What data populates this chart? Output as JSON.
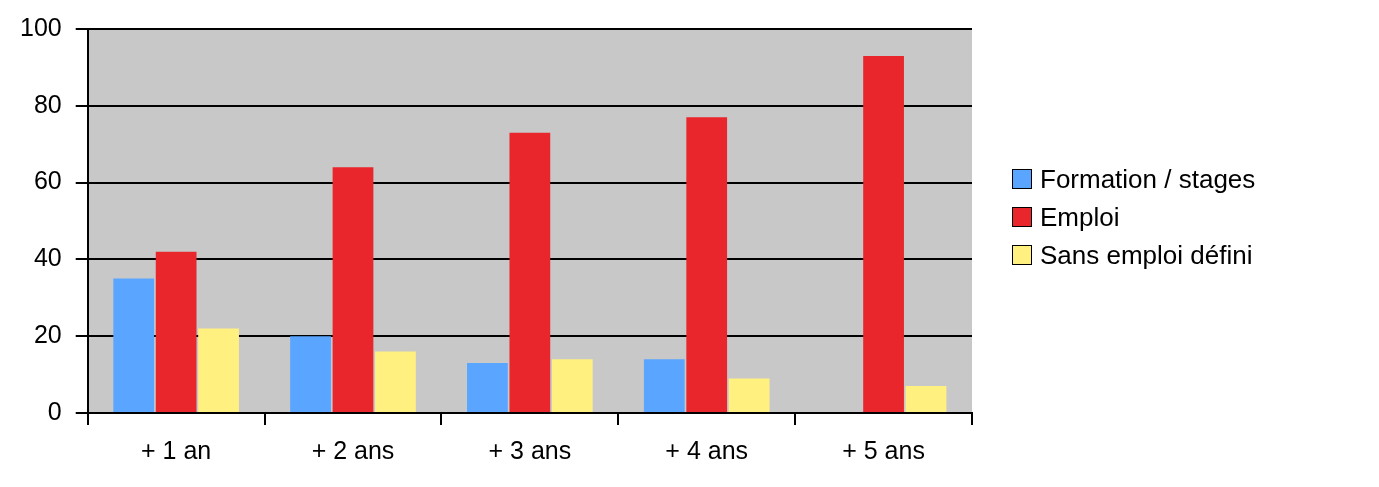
{
  "chart_data": {
    "type": "bar",
    "categories": [
      "+ 1 an",
      "+ 2 ans",
      "+ 3 ans",
      "+ 4 ans",
      "+ 5 ans"
    ],
    "series": [
      {
        "name": "Formation / stages",
        "color": "#5aa5ff",
        "values": [
          35,
          20,
          13,
          14,
          null
        ]
      },
      {
        "name": "Emploi",
        "color": "#e8262b",
        "values": [
          42,
          64,
          73,
          77,
          93
        ]
      },
      {
        "name": "Sans emploi défini",
        "color": "#fff080",
        "values": [
          22,
          16,
          14,
          9,
          7
        ]
      }
    ],
    "ylim": [
      0,
      100
    ],
    "yticks": [
      0,
      20,
      40,
      60,
      80,
      100
    ],
    "grid": "y",
    "legend": "right"
  }
}
